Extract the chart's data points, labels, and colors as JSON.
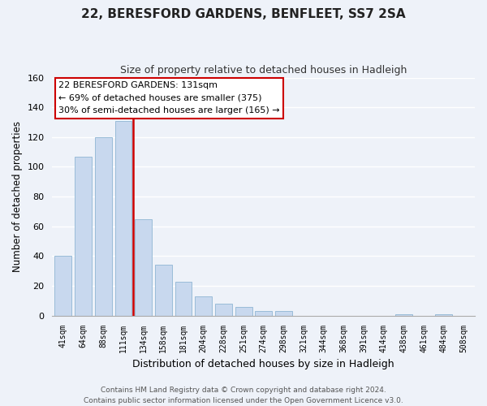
{
  "title": "22, BERESFORD GARDENS, BENFLEET, SS7 2SA",
  "subtitle": "Size of property relative to detached houses in Hadleigh",
  "xlabel": "Distribution of detached houses by size in Hadleigh",
  "ylabel": "Number of detached properties",
  "bar_labels": [
    "41sqm",
    "64sqm",
    "88sqm",
    "111sqm",
    "134sqm",
    "158sqm",
    "181sqm",
    "204sqm",
    "228sqm",
    "251sqm",
    "274sqm",
    "298sqm",
    "321sqm",
    "344sqm",
    "368sqm",
    "391sqm",
    "414sqm",
    "438sqm",
    "461sqm",
    "484sqm",
    "508sqm"
  ],
  "bar_values": [
    40,
    107,
    120,
    131,
    65,
    34,
    23,
    13,
    8,
    6,
    3,
    3,
    0,
    0,
    0,
    0,
    0,
    1,
    0,
    1,
    0
  ],
  "bar_color": "#c8d8ee",
  "bar_edge_color": "#99bcd8",
  "vline_color": "#cc0000",
  "vline_index": 3,
  "ylim": [
    0,
    160
  ],
  "yticks": [
    0,
    20,
    40,
    60,
    80,
    100,
    120,
    140,
    160
  ],
  "annotation_title": "22 BERESFORD GARDENS: 131sqm",
  "annotation_line1": "← 69% of detached houses are smaller (375)",
  "annotation_line2": "30% of semi-detached houses are larger (165) →",
  "box_facecolor": "#ffffff",
  "box_edgecolor": "#cc0000",
  "footer_line1": "Contains HM Land Registry data © Crown copyright and database right 2024.",
  "footer_line2": "Contains public sector information licensed under the Open Government Licence v3.0.",
  "background_color": "#eef2f9",
  "grid_color": "#ffffff",
  "title_fontsize": 11,
  "subtitle_fontsize": 9,
  "ylabel_fontsize": 8.5,
  "xlabel_fontsize": 9,
  "tick_fontsize": 7,
  "annotation_fontsize": 8,
  "footer_fontsize": 6.5
}
